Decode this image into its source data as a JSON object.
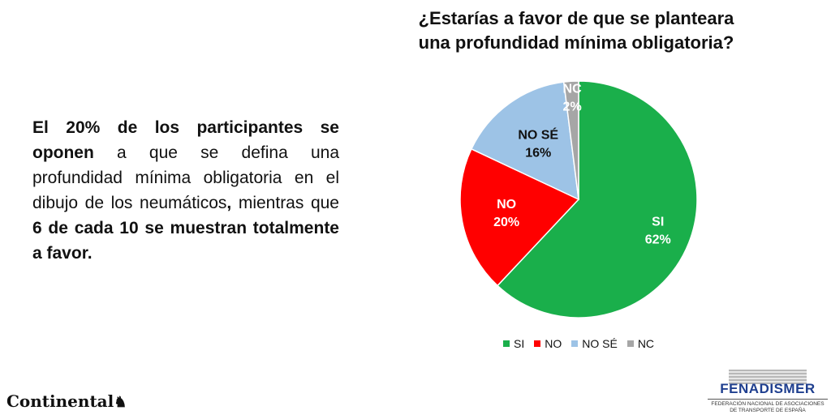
{
  "summary": {
    "part1_bold": "El 20% de los participantes se oponen",
    "part2": " a que se defina una profundidad mínima obligatoria en el dibujo de los neumáticos",
    "part3_bold": ",",
    "part4": " mientras que ",
    "part5_bold": "6 de cada 10 se muestran totalmente a favor."
  },
  "chart_data": {
    "type": "pie",
    "title_line1": "¿Estarías a favor de que se planteara",
    "title_line2": "una profundidad mínima obligatoria?",
    "categories": [
      "SI",
      "NO",
      "NO SÉ",
      "NC"
    ],
    "values": [
      62,
      20,
      16,
      2
    ],
    "data_labels": [
      "62%",
      "20%",
      "16%",
      "2%"
    ],
    "colors": [
      "#1aaf4b",
      "#ff0000",
      "#9dc3e6",
      "#a6a6a6"
    ],
    "label_colors": [
      "#ffffff",
      "#ffffff",
      "#111111",
      "#ffffff"
    ],
    "legend_position": "bottom"
  },
  "logos": {
    "continental": "Continental",
    "fenadismer": "FENADISMER",
    "fenadismer_sub1": "FEDERACIÓN NACIONAL DE ASOCIACIONES",
    "fenadismer_sub2": "DE TRANSPORTE DE ESPAÑA"
  }
}
